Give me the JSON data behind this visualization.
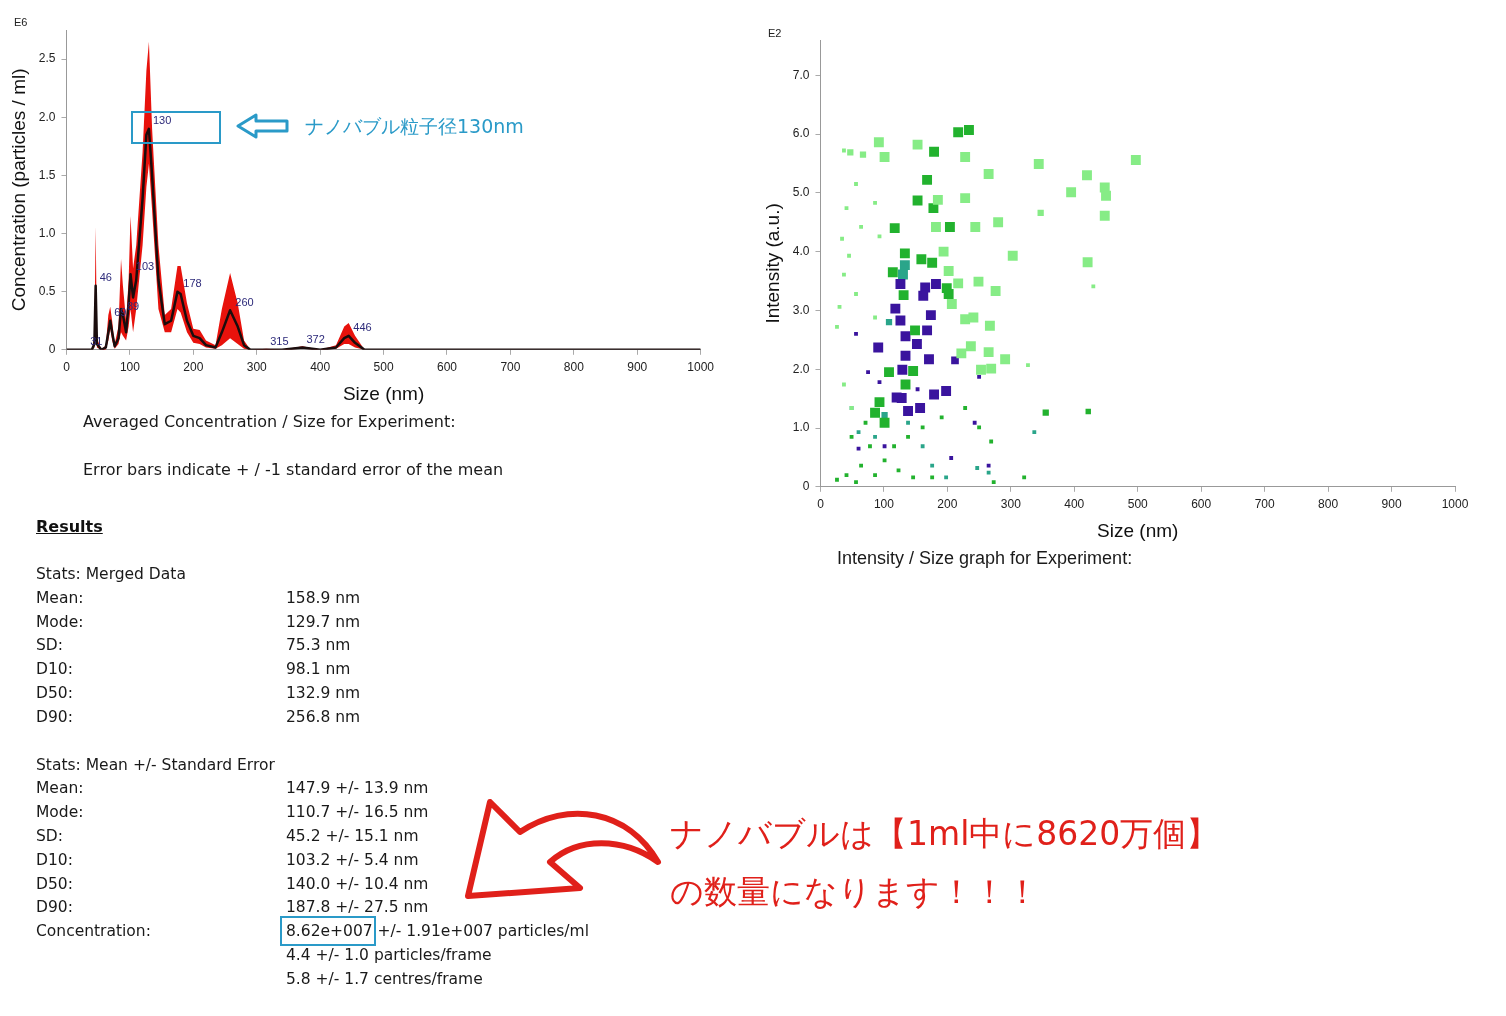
{
  "chart_data": [
    {
      "type": "line",
      "ylabel": "Concentration (particles / ml)",
      "xlabel": "Size (nm)",
      "x": [
        0,
        40,
        44,
        46,
        48,
        55,
        62,
        66,
        69,
        72,
        76,
        82,
        86,
        89,
        94,
        98,
        101,
        105,
        110,
        120,
        126,
        130,
        135,
        145,
        155,
        165,
        175,
        180,
        190,
        200,
        210,
        220,
        235,
        245,
        258,
        270,
        280,
        290,
        315,
        340,
        372,
        400,
        425,
        438,
        445,
        455,
        470,
        500,
        1000
      ],
      "series": [
        {
          "color": "#1a0d0d",
          "values": [
            0,
            0,
            0.05,
            0.55,
            0.05,
            0,
            0.02,
            0.15,
            0.25,
            0.15,
            0.03,
            0.1,
            0.35,
            0.3,
            0.15,
            0.4,
            0.65,
            0.45,
            0.6,
            1.3,
            1.85,
            1.9,
            1.5,
            0.6,
            0.22,
            0.25,
            0.5,
            0.48,
            0.25,
            0.12,
            0.1,
            0.04,
            0.02,
            0.15,
            0.34,
            0.2,
            0.04,
            0,
            0,
            0,
            0.02,
            0,
            0.02,
            0.1,
            0.12,
            0.06,
            0,
            0,
            0
          ],
          "upper": [
            0,
            0,
            0.1,
            1.06,
            0.1,
            0,
            0.04,
            0.3,
            0.37,
            0.25,
            0.05,
            0.2,
            0.78,
            0.55,
            0.25,
            0.6,
            1.15,
            0.7,
            0.9,
            1.7,
            2.4,
            2.65,
            1.9,
            0.9,
            0.3,
            0.35,
            0.72,
            0.72,
            0.4,
            0.18,
            0.17,
            0.08,
            0.04,
            0.35,
            0.66,
            0.4,
            0.08,
            0,
            0.01,
            0,
            0.03,
            0,
            0.04,
            0.2,
            0.23,
            0.12,
            0,
            0,
            0
          ],
          "lower": [
            0,
            0,
            0.02,
            0.3,
            0.02,
            0,
            0,
            0.08,
            0.18,
            0.08,
            0.01,
            0.05,
            0.15,
            0.12,
            0.08,
            0.2,
            0.35,
            0.15,
            0.35,
            0.9,
            1.4,
            1.6,
            1.2,
            0.35,
            0.15,
            0.15,
            0.35,
            0.32,
            0.15,
            0.06,
            0.05,
            0.02,
            0.01,
            0.04,
            0.1,
            0.05,
            0.01,
            0,
            0,
            0,
            0.01,
            0,
            0.01,
            0.05,
            0.05,
            0.02,
            0,
            0,
            0
          ]
        }
      ],
      "xlim": [
        0,
        1000
      ],
      "xticks": [
        0,
        100,
        200,
        300,
        400,
        500,
        600,
        700,
        800,
        900,
        1000
      ],
      "ylim": [
        0,
        2.75
      ],
      "yticks": [
        0,
        0.5,
        {
          "value": 1,
          "label": "1.0"
        },
        1.5,
        {
          "value": 2,
          "label": "2.0"
        },
        2.5
      ],
      "annotations": [
        "E6",
        {
          "text": "31",
          "x": 31,
          "y": 0
        },
        {
          "text": "46",
          "x": 46,
          "y": 0.55
        },
        {
          "text": "69",
          "x": 69,
          "y": 0.25
        },
        {
          "text": "89",
          "x": 89,
          "y": 0.3
        },
        {
          "text": "103",
          "x": 103,
          "y": 0.65
        },
        {
          "text": "130",
          "x": 130,
          "y": 1.9
        },
        {
          "text": "178",
          "x": 178,
          "y": 0.5
        },
        {
          "text": "260",
          "x": 260,
          "y": 0.34
        },
        {
          "text": "315",
          "x": 315,
          "y": 0
        },
        {
          "text": "372",
          "x": 372,
          "y": 0.02
        },
        {
          "text": "446",
          "x": 446,
          "y": 0.12
        },
        "ナノバブル粒子径130nm",
        "Averaged Concentration / Size for Experiment:",
        "Error bars indicate + / -1 standard error of the mean"
      ]
    },
    {
      "type": "bubble",
      "xlabel": "Size (nm)",
      "ylabel": "Intensity (a.u.)",
      "marker": "square",
      "xlim": [
        0,
        1000
      ],
      "xticks": [
        0,
        100,
        200,
        300,
        400,
        500,
        600,
        700,
        800,
        900,
        1000
      ],
      "ylim": [
        0,
        7.6
      ],
      "yticks": [
        0,
        {
          "value": 1,
          "label": "1.0"
        },
        {
          "value": 2,
          "label": "2.0"
        },
        {
          "value": 3,
          "label": "3.0"
        },
        {
          "value": 4,
          "label": "4.0"
        },
        {
          "value": 5,
          "label": "5.0"
        },
        {
          "value": 6,
          "label": "6.0"
        },
        {
          "value": 7,
          "label": "7.0"
        }
      ],
      "series": [
        {
          "color": "#86ec86",
          "x": [
            92,
            101,
            153,
            228,
            265,
            344,
            497,
            420,
            395,
            448,
            450,
            448,
            228,
            185,
            182,
            244,
            280,
            194,
            303,
            421,
            202,
            217,
            249,
            276,
            207,
            228,
            241,
            267,
            222,
            237,
            265,
            291,
            253,
            269,
            47,
            67,
            37,
            41,
            34,
            37,
            30,
            26,
            45,
            56,
            64,
            86,
            93,
            347,
            430,
            327,
            56,
            86,
            37,
            49
          ],
          "values": [
            5.86,
            5.61,
            5.82,
            5.61,
            5.32,
            5.49,
            5.56,
            5.3,
            5.01,
            5.09,
            4.95,
            4.61,
            4.91,
            4.88,
            4.42,
            4.42,
            4.5,
            4,
            3.93,
            3.82,
            3.67,
            3.46,
            3.49,
            3.33,
            3.11,
            2.85,
            2.88,
            2.74,
            2.27,
            2.39,
            2.29,
            2.17,
            1.99,
            2.01,
            5.69,
            5.65,
            5.72,
            4.74,
            4.22,
            3.61,
            3.06,
            2.72,
            3.93,
            5.15,
            4.42,
            4.83,
            4.26,
            4.66,
            3.41,
            2.07,
            3.28,
            2.88,
            1.74,
            1.34
          ],
          "sizes": [
            1,
            1,
            1,
            1,
            1,
            1,
            1,
            1,
            1,
            1,
            1,
            1,
            1,
            1,
            1,
            1,
            1,
            1,
            1,
            1,
            1,
            1,
            1,
            1,
            1,
            1,
            1,
            1,
            1,
            1,
            1,
            1,
            1,
            1,
            0.4,
            0.4,
            0.15,
            0.15,
            0.15,
            0.15,
            0.15,
            0.15,
            0.15,
            0.15,
            0.15,
            0.15,
            0.15,
            0.4,
            0.15,
            0.15,
            0.15,
            0.15,
            0.15,
            0.15
          ]
        },
        {
          "color": "#22b22e",
          "x": [
            217,
            234,
            179,
            168,
            153,
            178,
            117,
            204,
            133,
            159,
            176,
            114,
            199,
            202,
            131,
            149,
            93,
            101,
            86,
            108,
            146,
            134,
            355,
            422,
            41,
            64,
            86,
            101,
            123,
            146,
            176,
            78,
            116,
            138,
            161,
            71,
            49,
            26,
            273,
            321,
            269,
            191,
            228,
            250,
            56
          ],
          "values": [
            6.03,
            6.07,
            5.7,
            5.22,
            4.87,
            4.74,
            4.4,
            4.42,
            3.97,
            3.87,
            3.81,
            3.65,
            3.38,
            3.28,
            3.26,
            2.66,
            1.44,
            1.09,
            1.26,
            1.95,
            1.97,
            1.74,
            1.26,
            1.28,
            0.2,
            0.36,
            0.2,
            0.45,
            0.28,
            0.16,
            0.16,
            0.69,
            0.69,
            0.85,
            1.01,
            1.09,
            0.85,
            0.12,
            0.08,
            0.16,
            0.77,
            1.18,
            1.34,
            1.01,
            0.08
          ],
          "sizes": [
            1,
            1,
            1,
            1,
            1,
            1,
            1,
            1,
            1,
            1,
            1,
            1,
            1,
            1,
            1,
            1,
            1,
            1,
            1,
            1,
            1,
            1,
            0.4,
            0.3,
            0.15,
            0.15,
            0.15,
            0.15,
            0.15,
            0.15,
            0.15,
            0.15,
            0.15,
            0.15,
            0.15,
            0.15,
            0.15,
            0.15,
            0.15,
            0.15,
            0.15,
            0.15,
            0.15,
            0.15,
            0.15
          ]
        },
        {
          "color": "#3a149e",
          "x": [
            126,
            165,
            182,
            162,
            174,
            118,
            126,
            134,
            168,
            152,
            91,
            134,
            171,
            129,
            128,
            120,
            138,
            157,
            179,
            198,
            212,
            56,
            93,
            101,
            243,
            265,
            153,
            206,
            250,
            75,
            60
          ],
          "values": [
            3.45,
            3.39,
            3.45,
            3.25,
            2.92,
            3.03,
            2.83,
            2.56,
            2.66,
            2.43,
            2.37,
            2.23,
            2.17,
            1.99,
            1.51,
            1.52,
            1.29,
            1.34,
            1.57,
            1.63,
            2.15,
            2.6,
            1.78,
            0.69,
            1.09,
            0.36,
            1.66,
            0.49,
            1.87,
            1.95,
            0.65
          ],
          "sizes": [
            1,
            1,
            1,
            1,
            1,
            1,
            1,
            1,
            1,
            1,
            1,
            1,
            1,
            1,
            1,
            1,
            1,
            1,
            1,
            1,
            0.6,
            0.15,
            0.15,
            0.15,
            0.15,
            0.15,
            0.15,
            0.15,
            0.15,
            0.15,
            0.15
          ]
        },
        {
          "color": "#2aa58a",
          "x": [
            133,
            130,
            108,
            101,
            60,
            176,
            198,
            247,
            265,
            86,
            138,
            337,
            161,
            49
          ],
          "values": [
            3.77,
            3.61,
            2.8,
            1.22,
            0.93,
            0.36,
            0.16,
            0.32,
            0.24,
            0.85,
            1.09,
            0.93,
            0.69,
            1.34
          ],
          "sizes": [
            1,
            1,
            0.4,
            0.4,
            0.15,
            0.15,
            0.15,
            0.15,
            0.15,
            0.15,
            0.15,
            0.15,
            0.15,
            0.15
          ]
        }
      ],
      "annotations": [
        "E2",
        "Intensity / Size graph for Experiment:"
      ]
    },
    {
      "type": "other",
      "title": "Results",
      "annotations": [
        "Stats: Merged Data",
        "Mean:\t158.9 nm",
        "Mode:\t129.7 nm",
        "SD:\t75.3 nm",
        "D10:\t98.1 nm",
        "D50:\t132.9 nm",
        "D90:\t256.8 nm",
        "Stats: Mean +/- Standard Error",
        "Mean:\t147.9 +/- 13.9 nm",
        "Mode:\t110.7 +/- 16.5 nm",
        "SD:\t45.2 +/- 15.1 nm",
        "D10:\t103.2 +/- 5.4 nm",
        "D50:\t140.0 +/- 10.4 nm",
        "D90:\t187.8 +/- 27.5 nm",
        "Concentration:\t8.62e+007 +/- 1.91e+007 particles/ml",
        "\t4.4 +/- 1.0 particles/frame",
        "\t5.8 +/- 1.7 centres/frame",
        "ナノバブルは【1ml中に8620万個】",
        "の数量になります！！！"
      ]
    }
  ]
}
